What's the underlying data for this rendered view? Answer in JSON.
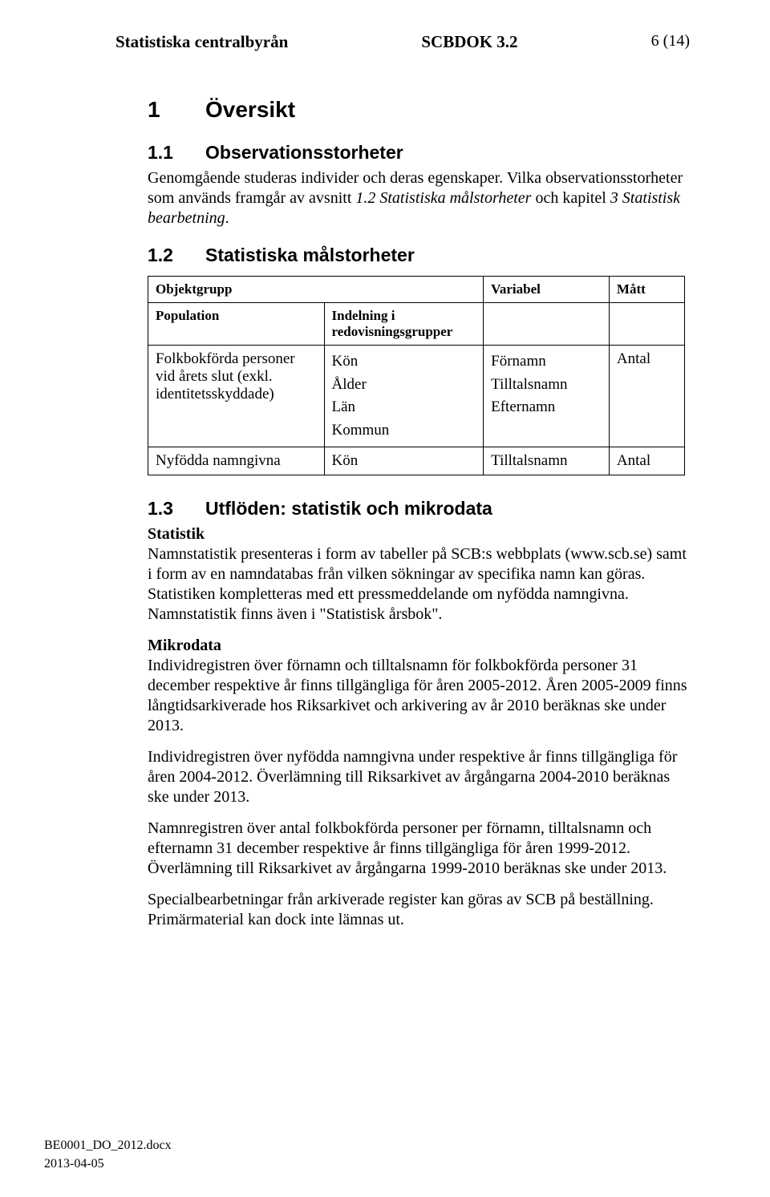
{
  "header": {
    "left": "Statistiska centralbyrån",
    "center": "SCBDOK 3.2",
    "right": "6 (14)"
  },
  "section1": {
    "num": "1",
    "title": "Översikt"
  },
  "section11": {
    "num": "1.1",
    "title": "Observationsstorheter",
    "para": "Genomgående studeras individer och deras egenskaper. Vilka observationsstorheter som används framgår av avsnitt ",
    "para_it1": "1.2 Statistiska målstorheter",
    "para_mid": " och kapitel ",
    "para_it2": "3 Statistisk bearbetning",
    "para_end": "."
  },
  "section12": {
    "num": "1.2",
    "title": "Statistiska målstorheter"
  },
  "table": {
    "hdr_obj": "Objektgrupp",
    "hdr_var": "Variabel",
    "hdr_matt": "Mått",
    "hdr_pop": "Population",
    "hdr_ind": "Indelning i redovisningsgrupper",
    "r1_pop": "Folkbokförda personer vid årets slut (exkl. identitetsskyddade)",
    "r1_ind1": "Kön",
    "r1_ind2": "Ålder",
    "r1_ind3": "Län",
    "r1_ind4": "Kommun",
    "r1_var1": "Förnamn",
    "r1_var2": "Tilltalsnamn",
    "r1_var3": "Efternamn",
    "r1_matt": "Antal",
    "r2_pop": "Nyfödda namngivna",
    "r2_ind": "Kön",
    "r2_var": "Tilltalsnamn",
    "r2_matt": "Antal"
  },
  "section13": {
    "num": "1.3",
    "title": "Utflöden: statistik och mikrodata",
    "stat_label": "Statistik",
    "stat_para": "Namnstatistik presenteras i form av tabeller på SCB:s webbplats (www.scb.se) samt i form av en namndatabas från vilken sökningar av specifika namn kan göras. Statistiken kompletteras med ett pressmeddelande om nyfödda namngivna. Namnstatistik finns även i \"Statistisk årsbok\".",
    "mikro_label": "Mikrodata",
    "mikro_p1": "Individregistren över förnamn och tilltalsnamn för folkbokförda personer 31 december respektive år finns tillgängliga för åren 2005-2012. Åren 2005-2009 finns långtidsarkiverade hos Riksarkivet och arkivering av år 2010 beräknas ske under 2013.",
    "mikro_p2": "Individregistren över nyfödda namngivna under respektive år finns tillgängliga för åren 2004-2012. Överlämning till Riksarkivet av årgångarna 2004-2010 beräknas ske under 2013.",
    "mikro_p3": "Namnregistren över antal folkbokförda personer per förnamn, tilltalsnamn och efternamn 31 december respektive år finns tillgängliga för åren 1999-2012. Överlämning till Riksarkivet av årgångarna 1999-2010 beräknas ske under 2013.",
    "mikro_p4": "Specialbearbetningar från arkiverade register kan göras av SCB på beställning. Primärmaterial kan dock inte lämnas ut."
  },
  "footer": {
    "filename": "BE0001_DO_2012.docx",
    "date": "2013-04-05"
  }
}
